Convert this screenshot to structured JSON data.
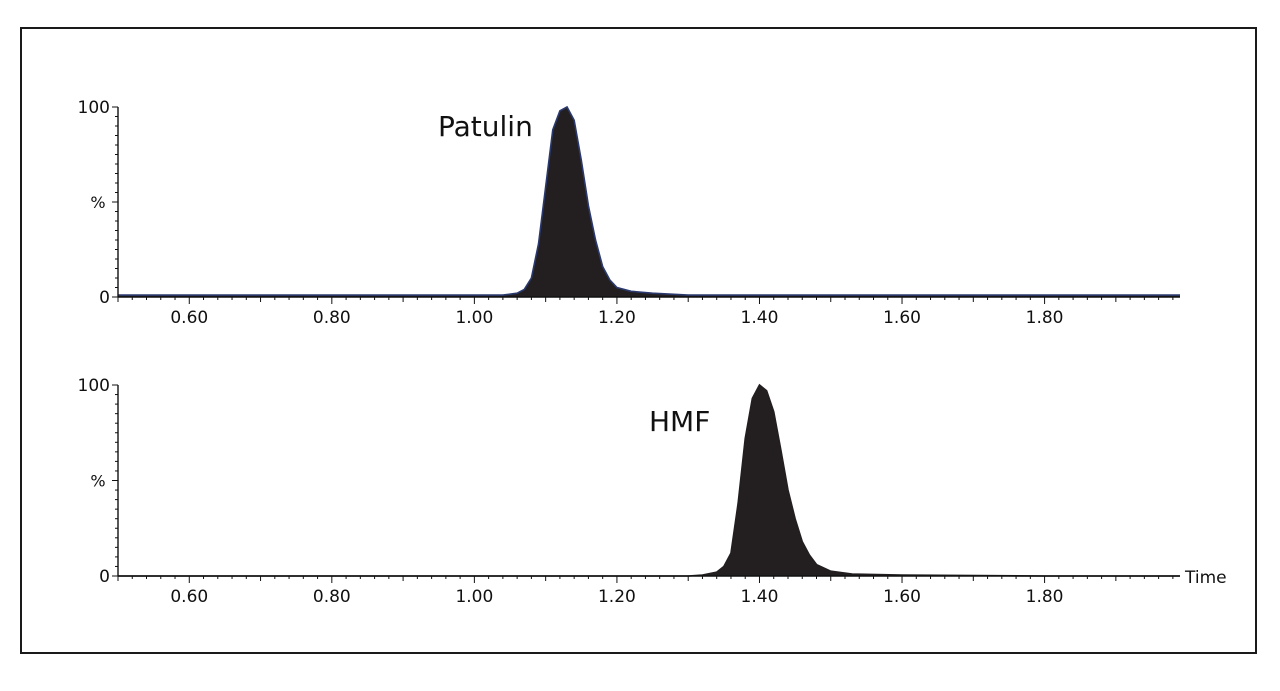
{
  "chart_data": [
    {
      "type": "area",
      "peak_label": "Patulin",
      "ylabel": "%",
      "yticks": [
        "0",
        "100"
      ],
      "ylim": [
        0,
        100
      ],
      "xlim": [
        0.5,
        1.99
      ],
      "xticks": [
        0.6,
        0.8,
        1.0,
        1.2,
        1.4,
        1.6,
        1.8
      ],
      "xtick_labels": [
        "0.60",
        "0.80",
        "1.00",
        "1.20",
        "1.40",
        "1.60",
        "1.80"
      ],
      "xlabel": "",
      "fill_color": "#231f20",
      "outline_color": "#2b3a6e",
      "x": [
        0.5,
        0.7,
        0.95,
        1.04,
        1.06,
        1.07,
        1.08,
        1.09,
        1.1,
        1.11,
        1.12,
        1.13,
        1.14,
        1.15,
        1.16,
        1.17,
        1.18,
        1.19,
        1.2,
        1.22,
        1.25,
        1.3,
        1.4,
        1.6,
        1.99
      ],
      "y": [
        1,
        1,
        1,
        1,
        2,
        4,
        10,
        28,
        58,
        88,
        98,
        100,
        93,
        72,
        48,
        30,
        16,
        9,
        5,
        3,
        2,
        1,
        1,
        1,
        1
      ]
    },
    {
      "type": "area",
      "peak_label": "HMF",
      "ylabel": "%",
      "yticks": [
        "0",
        "100"
      ],
      "ylim": [
        0,
        100
      ],
      "xlim": [
        0.5,
        1.99
      ],
      "xticks": [
        0.6,
        0.8,
        1.0,
        1.2,
        1.4,
        1.6,
        1.8
      ],
      "xtick_labels": [
        "0.60",
        "0.80",
        "1.00",
        "1.20",
        "1.40",
        "1.60",
        "1.80"
      ],
      "xlabel": "Time",
      "fill_color": "#231f20",
      "outline_color": "#231f20",
      "x": [
        0.5,
        1.0,
        1.3,
        1.32,
        1.34,
        1.35,
        1.36,
        1.37,
        1.38,
        1.39,
        1.4,
        1.41,
        1.42,
        1.43,
        1.44,
        1.45,
        1.46,
        1.47,
        1.48,
        1.5,
        1.53,
        1.6,
        1.8,
        1.99
      ],
      "y": [
        0,
        0,
        0,
        0.5,
        2,
        5,
        12,
        38,
        72,
        93,
        100,
        97,
        86,
        66,
        45,
        30,
        18,
        11,
        6,
        2.5,
        1,
        0.5,
        0,
        0
      ]
    }
  ]
}
